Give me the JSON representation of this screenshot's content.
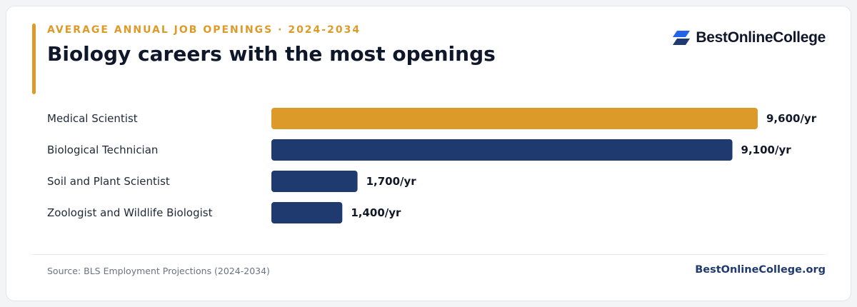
{
  "header": {
    "eyebrow": "AVERAGE ANNUAL JOB OPENINGS · 2024-2034",
    "title": "Biology careers with the most openings"
  },
  "brand": {
    "name": "BestOnlineCollege",
    "icon": "stacked-parallelogram-logo-icon"
  },
  "footer": {
    "source": "Source: BLS Employment Projections (2024-2034)",
    "site": "BestOnlineCollege.org"
  },
  "colors": {
    "accent": "#dc9b29",
    "primary": "#1e3a6e",
    "brand_icon": "#2563eb"
  },
  "chart_data": {
    "type": "bar",
    "orientation": "horizontal",
    "title": "Biology careers with the most openings",
    "subtitle": "AVERAGE ANNUAL JOB OPENINGS · 2024-2034",
    "categories": [
      "Medical Scientist",
      "Biological Technician",
      "Soil and Plant Scientist",
      "Zoologist and Wildlife Biologist"
    ],
    "values": [
      9600,
      9100,
      1700,
      1400
    ],
    "value_labels": [
      "9,600/yr",
      "9,100/yr",
      "1,700/yr",
      "1,400/yr"
    ],
    "highlight_index": 0,
    "xlim": [
      0,
      9600
    ],
    "grid": false,
    "legend": "none"
  }
}
